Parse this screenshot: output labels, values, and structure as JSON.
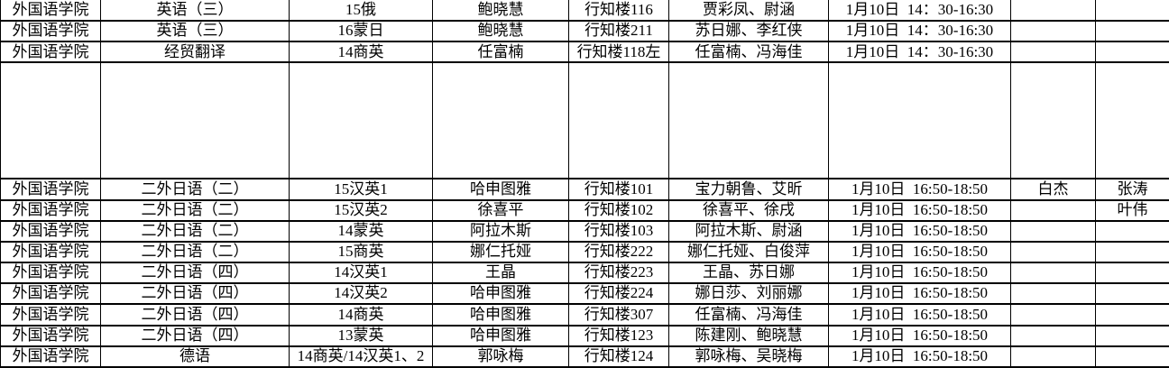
{
  "colors": {
    "background": "#ffffff",
    "text": "#000000",
    "grid": "#000000"
  },
  "table": {
    "column_keys": [
      "college",
      "course",
      "class",
      "teacher",
      "room",
      "invigilators",
      "datetime",
      "note-1",
      "note-2"
    ],
    "rows": [
      {
        "tall": false,
        "cells": [
          "外国语学院",
          "英语（三）",
          "15俄",
          "鲍晓慧",
          "行知楼116",
          "贾彩凤、尉涵",
          "1月10日  14：30-16:30",
          "",
          ""
        ]
      },
      {
        "tall": false,
        "cells": [
          "外国语学院",
          "英语（三）",
          "16蒙日",
          "鲍晓慧",
          "行知楼211",
          "苏日娜、李红侠",
          "1月10日  14：30-16:30",
          "",
          ""
        ]
      },
      {
        "tall": false,
        "cells": [
          "外国语学院",
          "经贸翻译",
          "14商英",
          "任富楠",
          "行知楼118左",
          "任富楠、冯海佳",
          "1月10日  14：30-16:30",
          "",
          ""
        ]
      },
      {
        "tall": true,
        "cells": [
          "",
          "",
          "",
          "",
          "",
          "",
          "",
          "",
          ""
        ]
      },
      {
        "tall": false,
        "cells": [
          "外国语学院",
          "二外日语（二）",
          "15汉英1",
          "哈申图雅",
          "行知楼101",
          "宝力朝鲁、艾昕",
          "1月10日  16:50-18:50",
          "白杰",
          "张涛"
        ]
      },
      {
        "tall": false,
        "cells": [
          "外国语学院",
          "二外日语（二）",
          "15汉英2",
          "徐喜平",
          "行知楼102",
          "徐喜平、徐戌",
          "1月10日  16:50-18:50",
          "",
          "叶伟"
        ]
      },
      {
        "tall": false,
        "cells": [
          "外国语学院",
          "二外日语（二）",
          "14蒙英",
          "阿拉木斯",
          "行知楼103",
          "阿拉木斯、尉涵",
          "1月10日  16:50-18:50",
          "",
          ""
        ]
      },
      {
        "tall": false,
        "cells": [
          "外国语学院",
          "二外日语（二）",
          "15商英",
          "娜仁托娅",
          "行知楼222",
          "娜仁托娅、白俊萍",
          "1月10日  16:50-18:50",
          "",
          ""
        ]
      },
      {
        "tall": false,
        "cells": [
          "外国语学院",
          "二外日语（四）",
          "14汉英1",
          "王晶",
          "行知楼223",
          "王晶、苏日娜",
          "1月10日  16:50-18:50",
          "",
          ""
        ]
      },
      {
        "tall": false,
        "cells": [
          "外国语学院",
          "二外日语（四）",
          "14汉英2",
          "哈申图雅",
          "行知楼224",
          "娜日莎、刘丽娜",
          "1月10日  16:50-18:50",
          "",
          ""
        ]
      },
      {
        "tall": false,
        "cells": [
          "外国语学院",
          "二外日语（四）",
          "14商英",
          "哈申图雅",
          "行知楼307",
          "任富楠、冯海佳",
          "1月10日  16:50-18:50",
          "",
          ""
        ]
      },
      {
        "tall": false,
        "cells": [
          "外国语学院",
          "二外日语（四）",
          "13蒙英",
          "哈申图雅",
          "行知楼123",
          "陈建刚、鲍晓慧",
          "1月10日  16:50-18:50",
          "",
          ""
        ]
      },
      {
        "tall": false,
        "cells": [
          "外国语学院",
          "德语",
          "14商英/14汉英1、2",
          "郭咏梅",
          "行知楼124",
          "郭咏梅、吴晓梅",
          "1月10日  16:50-18:50",
          "",
          ""
        ]
      }
    ]
  }
}
